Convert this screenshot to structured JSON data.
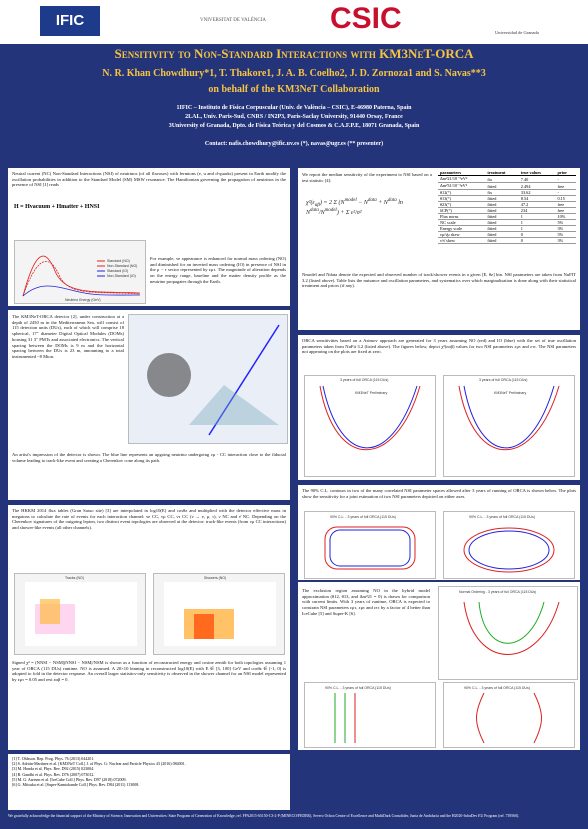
{
  "header": {
    "logos": [
      "IFIC",
      "VNIVERSITAT DE VALÈNCIA",
      "CSIC",
      "Universidad de Granada"
    ],
    "title": "Sensitivity to Non-Standard Interactions with KM3NeT-ORCA",
    "authors": "N. R. Khan Chowdhury*1, T. Thakore1, J. A. B. Coelho2, J. D. Zornoza1 and S. Navas**3",
    "collab": "on behalf of the KM3NeT Collaboration",
    "affiliations": [
      "1IFIC – Instituto de Física Corpuscular (Univ. de València – CSIC), E-46980 Paterna, Spain",
      "2LAL, Univ. Paris-Sud, CNRS / IN2P3, Paris-Saclay University, 91440 Orsay, France",
      "3University of Granada, Dpto. de Física Teórica y del Cosmos & C.A.F.P.E, 18071 Granada, Spain"
    ],
    "contact": "Contact: nafis.chowdhury@ific.uv.es (*), navas@ugr.es (** presenter)"
  },
  "left": {
    "intro": "Neutral current (NC) Non-Standard Interactions (NSI) of neutrinos (of all flavours) with fermions (e, u and d-quarks) present in Earth modify the oscillation probabilities in addition to the Standard Model (SM) MSW resonance. The Hamiltonian governing the propagation of neutrinos in the presence of NSI [1] reads",
    "hamiltonian": "H = Hvacuum + Hmatter + HNSI",
    "plot1_xlabel": "Neutrino Energy (GeV)",
    "plot1_legend": [
      "Standard (NO)",
      "Non-Standard (NO)",
      "Standard (IO)",
      "Non-Standard (IO)"
    ],
    "intro2": "For example, νe appearance is enhanced for normal mass ordering (NO) and diminished for an inverted mass ordering (IO) in presence of NSI in the μ − τ sector represented by εμτ. The magnitude of alteration depends on the energy range, baseline and the matter density profile as the neutrino propagates through the Earth.",
    "detector": "The KM3NeT-ORCA detector [2], under construction at a depth of 2450 m in the Mediterranean Sea, will consist of 115 detection units (DUs), each of which will comprise 18 spherical, 17\" diameter Digital Optical Modules (DOMs) housing 31 3\" PMTs and associated electronics. The vertical spacing between the DOMs is 9 m and the horizontal spacing between the DUs is 23 m, amounting to a total instrumented ~8 Mton.",
    "detector2": "An artist's impression of the detector is shown. The blue line represents an upgoing neutrino undergoing νμ - CC interaction close to the fiducial volume leading to track-like event and creating a Cherenkov cone along its path.",
    "hkkm": "The HKKM 2014 flux tables (Gran Sasso site) [3] are interpolated in log10(E) and cosθz and multiplied with the detector effective mass in megatons to calculate the rate of events for each interaction channel: νe CC, νμ CC, ντ CC (ν → e, μ, τ), ν NC and ν̄ NC. Depending on the Cherenkov signatures of the outgoing lepton, two distinct event topologies are observed at the detector: track-like events (from νμ CC interactions) and shower-like events (all other channels).",
    "plot_titles": [
      "Tracks (NO)",
      "Showers (NO)"
    ],
    "hkkm2": "Signed χ² = (NNSI − NSM)|NNSI − NSM|/NSM is shown as a function of reconstructed energy and cosine zenith for both topologies assuming 1 year of ORCA (115 DUs) runtime. NO is assumed. A 20×10 binning in reconstructed log10(E) with E ∈ [3, 100] GeV and cosθz ∈ [-1, 0] is adopted to fold in the detector response. An overall larger statistics-only sensitivity is observed in the shower channel for an NSI model represented by εμτ = 0.05 and rest εαβ = 0.",
    "refs": [
      "[1] T. Ohlsson. Rep. Prog. Phys. 76 (2013) 044201.",
      "[2] S. Adrián-Martínez et al. [KM3NeT Coll.] J. of Phys. G: Nuclear and Particle Physics 43 (2016) 084001.",
      "[3] M. Honda et al. Phys. Rev. D92 (2015) 023004.",
      "[4] R. Gandhi et al. Phys. Rev. D76 (2007) 073012.",
      "[5] M. G. Aartsen et al. [IceCube Coll.] Phys. Rev. D97 (2018) 072009.",
      "[6] G. Mitsuka et al. [Super-Kamiokande Coll.] Phys. Rev. D84 (2011) 113008."
    ]
  },
  "right": {
    "fit": "We report the median sensitivity of the experiment to NSI based on a test statistic [4]:",
    "fit2": "Nmodel and Ndata denote the expected and observed number of track/shower events in a given [E, θz] bin. NSI parameters are taken from NuFIT 3.2 (listed above). Table lists the nuisance and oscillation parameters, and systematics over which marginalisation is done along with their statistical treatment and priors (if any).",
    "table": {
      "header": [
        "parameters",
        "treatment",
        "true values",
        "prior"
      ],
      "rows": [
        [
          "Δm²21/10⁻⁵eV²",
          "fix",
          "7.40",
          "-"
        ],
        [
          "Δm²31/10⁻³eV²",
          "fitted",
          "2.494",
          "free"
        ],
        [
          "θ12(°)",
          "fix",
          "33.62",
          "-"
        ],
        [
          "θ13(°)",
          "fitted",
          "8.54",
          "0.15"
        ],
        [
          "θ23(°)",
          "fitted",
          "47.2",
          "free"
        ],
        [
          "δCP(°)",
          "fitted",
          "234",
          "free"
        ],
        [
          "Flux norm.",
          "fitted",
          "1",
          "10%"
        ],
        [
          "NC scale",
          "fitted",
          "1",
          "5%"
        ],
        [
          "Energy scale",
          "fitted",
          "1",
          "3%"
        ],
        [
          "νμ/ν̄μ skew",
          "fitted",
          "0",
          "5%"
        ],
        [
          "ν/ν̄ skew",
          "fitted",
          "0",
          "3%"
        ]
      ]
    },
    "sens": "ORCA sensitivities based on a Asimov approach are generated for 3 years assuming NO (red) and IO (blue) with the set of true oscillation parameters taken from NuFit 3.2 (listed above). The figures below, depict χ²(εαβ) values for two NSI parameters εμτ and εττ. The NSI parameters not appearing on the plots are fixed at zero.",
    "sens_plots": [
      "3 years of full ORCA (115 DUs)",
      "3 years of full ORCA (115 DUs)"
    ],
    "prelim": "KM3NeT Preliminary",
    "cl": "The 90% C.L. contours in two of the many correlated NSI parameter spaces allowed after 3 years of running of ORCA is shown below. The plots show the sensitivity for a joint estimation of two NSI parameters depicted on either axes.",
    "cl_plots": [
      "90% C.L. - 3 years of full ORCA (115 DUs)",
      "90% C.L. - 3 years of full ORCA (115 DUs)"
    ],
    "excl": "The exclusion region assuming NO in the hybrid model approximation (θ12, θ13, and Δm²21 = 0) is drawn for comparison with current limits. With 3 years of runtime, ORCA is expected to constrain NSI parameters εμτ, εμτ and εττ by a factor of 4 better than IceCube [5] and Super-K [6].",
    "excl_plots": [
      "Normal Ordering - 3 years of full ORCA (115 DUs)",
      "90% C.L. - 3 years of full ORCA (115 DUs)",
      "90% C.L. - 3 years of full ORCA (115 DUs)"
    ]
  },
  "footer": "We gratefully acknowledge the financial support of the Ministry of Science, Innovation and Universities: State Program of Generation of Knowledge, ref. FPA2015-65150-C3-2-P (MINECO/FEDER), Severo Ochoa Centre of Excellence and MultiDark Consolider, Junta de Andalucía and the H2020-InfraDev EU Program (ref. 739560)."
}
